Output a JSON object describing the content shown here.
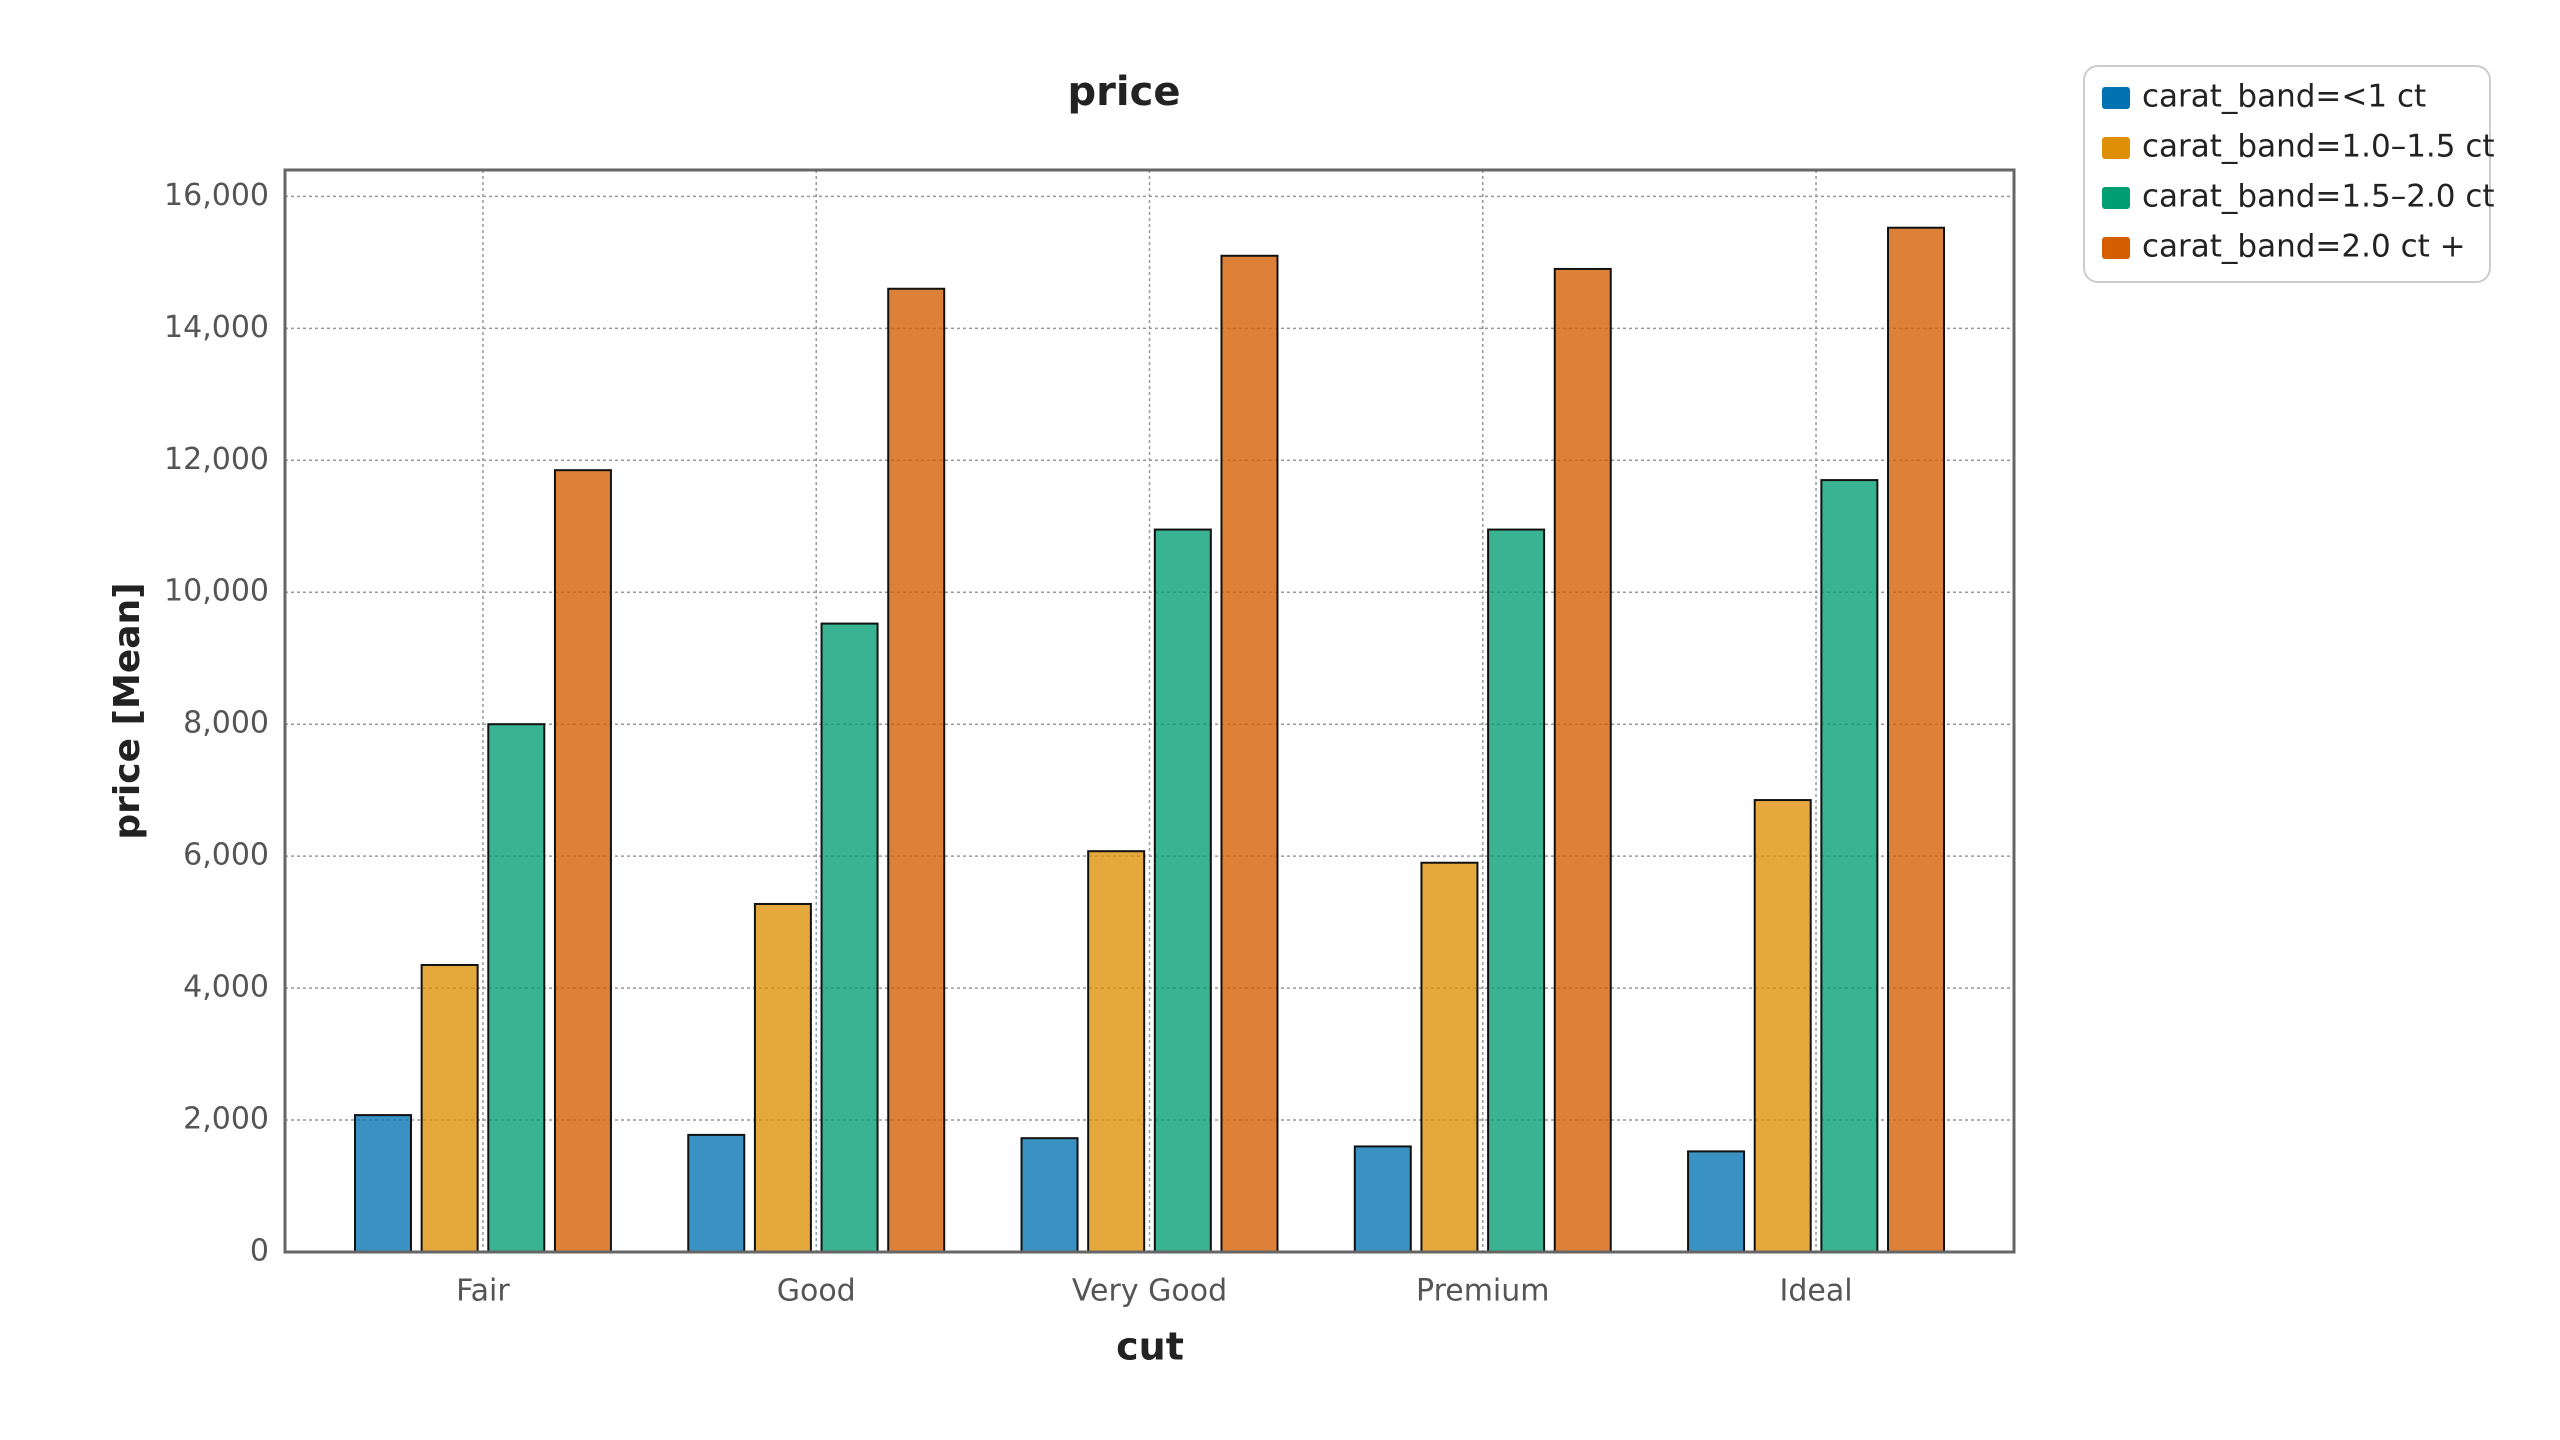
{
  "chart_data": {
    "type": "bar",
    "title": "price",
    "x_label": "cut",
    "y_label": "price [Mean]",
    "categories": [
      "Fair",
      "Good",
      "Very Good",
      "Premium",
      "Ideal"
    ],
    "series": [
      {
        "name": "carat_band=<1 ct",
        "color": "#0173b2",
        "values": [
          2075,
          1775,
          1725,
          1600,
          1525
        ]
      },
      {
        "name": "carat_band=1.0–1.5 ct",
        "color": "#de8f05",
        "values": [
          4350,
          5275,
          6075,
          5900,
          6850
        ]
      },
      {
        "name": "carat_band=1.5–2.0 ct",
        "color": "#029e73",
        "values": [
          8000,
          9525,
          10950,
          10950,
          11700
        ]
      },
      {
        "name": "carat_band=2.0 ct +",
        "color": "#d55e00",
        "values": [
          11850,
          14600,
          15100,
          14900,
          15525
        ]
      }
    ],
    "ylim": [
      0,
      16400
    ],
    "yticks": [
      0,
      {
        "value": 2000,
        "label": "2,000"
      },
      {
        "value": 4000,
        "label": "4,000"
      },
      {
        "value": 6000,
        "label": "6,000"
      },
      {
        "value": 8000,
        "label": "8,000"
      },
      {
        "value": 10000,
        "label": "10,000"
      },
      {
        "value": 12000,
        "label": "12,000"
      },
      {
        "value": 14000,
        "label": "14,000"
      },
      {
        "value": 16000,
        "label": "16,000"
      }
    ],
    "grid": true,
    "legend": "outside-top-right"
  }
}
